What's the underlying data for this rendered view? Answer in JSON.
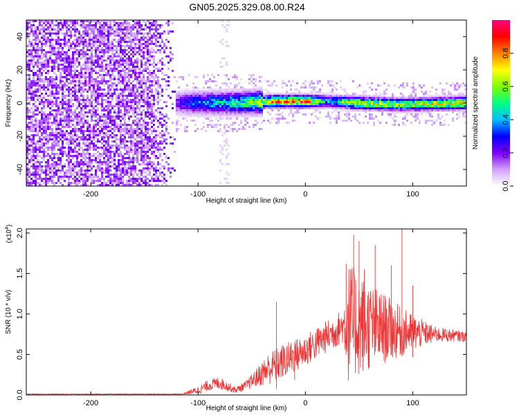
{
  "title": "GN05.2025.329.08.00.R24",
  "chart_data": [
    {
      "type": "heatmap",
      "xlabel": "Height of straight line (km)",
      "ylabel": "Frequency (Hz)",
      "xlim": [
        -260,
        150
      ],
      "ylim": [
        -50,
        50
      ],
      "xticks": [
        -200,
        -100,
        0,
        100
      ],
      "yticks": [
        -40,
        -20,
        0,
        20,
        40
      ],
      "colorbar": {
        "label": "Normalized spectral amplitude",
        "range": [
          0,
          1
        ],
        "ticks": [
          "0.0",
          "0.2",
          "0.4",
          "0.6",
          "0.8"
        ],
        "colors": [
          "#ffffff",
          "#d0a0ff",
          "#8000ff",
          "#0000ff",
          "#00c0ff",
          "#00ff80",
          "#80ff00",
          "#ffff00",
          "#ff8000",
          "#ff0000",
          "#ff0080"
        ]
      },
      "noise_region_x": [
        -260,
        -120
      ],
      "ridge": [
        {
          "x": -120,
          "freq": 0,
          "amp": 0.25
        },
        {
          "x": -100,
          "freq": 0,
          "amp": 0.42
        },
        {
          "x": -60,
          "freq": 0,
          "amp": 0.55
        },
        {
          "x": -30,
          "freq": 1,
          "amp": 0.85
        },
        {
          "x": 0,
          "freq": 1,
          "amp": 0.95
        },
        {
          "x": 20,
          "freq": 1,
          "amp": 0.45
        },
        {
          "x": 50,
          "freq": 0,
          "amp": 0.8
        },
        {
          "x": 90,
          "freq": -1,
          "amp": 0.7
        },
        {
          "x": 150,
          "freq": 0,
          "amp": 0.85
        }
      ]
    },
    {
      "type": "line",
      "xlabel": "Height of straight line (km)",
      "ylabel": "SNR (10 * v/v)",
      "yscale_label": "(x10^4)",
      "xlim": [
        -260,
        150
      ],
      "ylim": [
        0,
        2.05
      ],
      "xticks": [
        -200,
        -100,
        0,
        100
      ],
      "yticks": [
        "0.0",
        "0.5",
        "1.0",
        "1.5",
        "2.0"
      ],
      "color": "#ee3333",
      "envelope": [
        {
          "x": -260,
          "base": 0.01,
          "spread": 0.005
        },
        {
          "x": -115,
          "base": 0.01,
          "spread": 0.005
        },
        {
          "x": -100,
          "base": 0.06,
          "spread": 0.05
        },
        {
          "x": -90,
          "base": 0.12,
          "spread": 0.07
        },
        {
          "x": -80,
          "base": 0.15,
          "spread": 0.08
        },
        {
          "x": -65,
          "base": 0.06,
          "spread": 0.04
        },
        {
          "x": -55,
          "base": 0.12,
          "spread": 0.06
        },
        {
          "x": -45,
          "base": 0.22,
          "spread": 0.12
        },
        {
          "x": -35,
          "base": 0.32,
          "spread": 0.2
        },
        {
          "x": -20,
          "base": 0.42,
          "spread": 0.22
        },
        {
          "x": 0,
          "base": 0.55,
          "spread": 0.2
        },
        {
          "x": 20,
          "base": 0.72,
          "spread": 0.2
        },
        {
          "x": 35,
          "base": 0.85,
          "spread": 0.22
        },
        {
          "x": 40,
          "base": 0.9,
          "spread": 0.75
        },
        {
          "x": 60,
          "base": 0.85,
          "spread": 0.55
        },
        {
          "x": 90,
          "base": 0.78,
          "spread": 0.3
        },
        {
          "x": 120,
          "base": 0.75,
          "spread": 0.1
        },
        {
          "x": 150,
          "base": 0.72,
          "spread": 0.06
        }
      ],
      "spikes": [
        {
          "x": -27,
          "y": 1.15
        },
        {
          "x": -10,
          "y": 0.65
        },
        {
          "x": 38,
          "y": 1.62
        },
        {
          "x": 45,
          "y": 1.98
        },
        {
          "x": 50,
          "y": 1.9
        },
        {
          "x": 55,
          "y": 1.55
        },
        {
          "x": 65,
          "y": 1.85
        },
        {
          "x": 80,
          "y": 1.6
        },
        {
          "x": 90,
          "y": 2.05
        },
        {
          "x": 100,
          "y": 1.35
        }
      ]
    }
  ]
}
